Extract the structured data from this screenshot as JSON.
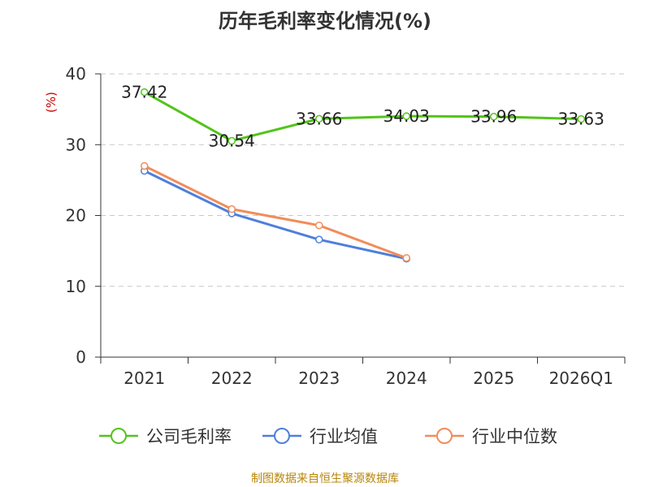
{
  "chart_data": {
    "type": "line",
    "title": "历年毛利率变化情况(%)",
    "ylabel": "(%)",
    "categories": [
      "2021",
      "2022",
      "2023",
      "2024",
      "2025",
      "2026Q1"
    ],
    "ylim": [
      0,
      40
    ],
    "yticks": [
      0,
      10,
      20,
      30,
      40
    ],
    "grid": true,
    "legend_position": "bottom",
    "series": [
      {
        "name": "公司毛利率",
        "color": "#52c41a",
        "values": [
          37.42,
          30.54,
          33.66,
          34.03,
          33.96,
          33.63
        ],
        "labels": [
          "37.42",
          "30.54",
          "33.66",
          "34.03",
          "33.96",
          "33.63"
        ]
      },
      {
        "name": "行业均值",
        "color": "#4f7fdc",
        "values": [
          26.3,
          20.3,
          16.6,
          13.9,
          null,
          null
        ]
      },
      {
        "name": "行业中位数",
        "color": "#f28c5a",
        "values": [
          27.0,
          20.9,
          18.6,
          14.0,
          null,
          null
        ]
      }
    ]
  },
  "footer": "制图数据来自恒生聚源数据库"
}
